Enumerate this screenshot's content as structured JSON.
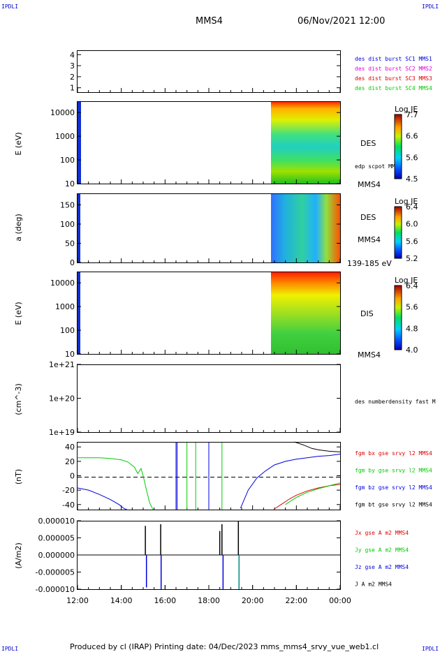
{
  "header": {
    "corner_label": "IPDLI",
    "spacecraft": "MMS4",
    "datetime": "06/Nov/2021 12:00"
  },
  "footer": {
    "text": "Produced by cl (IRAP)   Printing date: 04/Dec/2023   mms_mms4_srvy_vue_web1.cl"
  },
  "colors": {
    "blue": "#0000dd",
    "magenta": "#dd00dd",
    "red": "#dd0000",
    "green": "#00cc00",
    "black": "#000000"
  },
  "chart_data": [
    {
      "type": "line",
      "panel": "burst-indicator",
      "yticks": [
        "1",
        "2",
        "3",
        "4"
      ],
      "ylim": [
        0.6,
        4.4
      ],
      "legend": [
        {
          "name": "des dist burst SC1 MMS1",
          "color": "#0000dd"
        },
        {
          "name": "des dist burst SC2 MMS2",
          "color": "#dd00dd"
        },
        {
          "name": "des dist burst SC3 MMS3",
          "color": "#dd0000"
        },
        {
          "name": "des dist burst SC4 MMS4",
          "color": "#00cc00"
        }
      ]
    },
    {
      "type": "heatmap",
      "panel": "des-energy-spectrogram",
      "ylabel": "E (eV)",
      "yscale": "log",
      "yticks": [
        "10",
        "100",
        "1000",
        "10000"
      ],
      "ylim": [
        10,
        30000
      ],
      "label": "DES",
      "overlay_label": "edp scpot MMS4",
      "sc_label": "MMS4",
      "colorbar": {
        "title": "Log JE",
        "ticks": [
          "7.7",
          "6.6",
          "5.6",
          "4.5"
        ],
        "range": [
          4.5,
          7.7
        ]
      },
      "data_intervals": [
        [
          "12:00",
          "12:05"
        ],
        [
          "20:55",
          "24:00"
        ]
      ]
    },
    {
      "type": "heatmap",
      "panel": "des-pitch-angle",
      "ylabel": "a (deg)",
      "yticks": [
        "0",
        "50",
        "100",
        "150"
      ],
      "ylim": [
        0,
        180
      ],
      "label": "DES",
      "sc_label": "MMS4",
      "energy_range": "139-185 eV",
      "colorbar": {
        "title": "Log JE",
        "ticks": [
          "6.4",
          "6.0",
          "5.6",
          "5.2"
        ],
        "range": [
          5.2,
          6.4
        ]
      },
      "data_intervals": [
        [
          "12:00",
          "12:05"
        ],
        [
          "20:55",
          "24:00"
        ]
      ]
    },
    {
      "type": "heatmap",
      "panel": "dis-energy-spectrogram",
      "ylabel": "E (eV)",
      "yscale": "log",
      "yticks": [
        "10",
        "100",
        "1000",
        "10000"
      ],
      "ylim": [
        10,
        30000
      ],
      "label": "DIS",
      "sc_label": "MMS4",
      "colorbar": {
        "title": "Log JE",
        "ticks": [
          "6.4",
          "5.6",
          "4.8",
          "4.0"
        ],
        "range": [
          4.0,
          6.4
        ]
      },
      "data_intervals": [
        [
          "12:00",
          "12:05"
        ],
        [
          "20:55",
          "24:00"
        ]
      ]
    },
    {
      "type": "line",
      "panel": "density",
      "ylabel": "(cm^-3)",
      "yscale": "log",
      "yticks": [
        "1e+19",
        "1e+20",
        "1e+21"
      ],
      "ylim": [
        1e+19,
        1e+21
      ],
      "legend": [
        {
          "name": "des numberdensity fast M",
          "color": "#000000"
        }
      ]
    },
    {
      "type": "line",
      "panel": "magnetic-field",
      "ylabel": "(nT)",
      "yticks": [
        "-40",
        "-20",
        "0",
        "20",
        "40"
      ],
      "ylim": [
        -47,
        47
      ],
      "legend": [
        {
          "name": "fgm bx gse srvy l2 MMS4",
          "color": "#dd0000"
        },
        {
          "name": "fgm by gse srvy l2 MMS4",
          "color": "#00cc00"
        },
        {
          "name": "fgm bz gse srvy l2 MMS4",
          "color": "#0000dd"
        },
        {
          "name": "fgm bt gse srvy l2 MMS4",
          "color": "#000000"
        }
      ],
      "series": [
        {
          "name": "fgm by gse srvy l2 MMS4",
          "color": "#00cc00",
          "x": [
            12.0,
            12.5,
            13.0,
            13.5,
            14.0,
            14.3,
            14.6,
            14.75,
            14.9,
            15.0,
            15.15,
            15.3,
            15.45
          ],
          "y": [
            25,
            25,
            25,
            24,
            22,
            19,
            12,
            3,
            10,
            0,
            -20,
            -38,
            -47
          ]
        },
        {
          "name": "fgm bz gse srvy l2 MMS4",
          "color": "#0000dd",
          "x": [
            12.0,
            12.5,
            13.0,
            13.5,
            13.9,
            14.1,
            14.25
          ],
          "y": [
            -17,
            -20,
            -26,
            -33,
            -40,
            -45,
            -47
          ]
        },
        {
          "name": "fgm bz gse srvy l2 MMS4",
          "color": "#0000dd",
          "x": [
            19.45,
            19.8,
            20.2,
            20.6,
            21.0,
            21.5,
            22.0,
            22.5,
            23.0,
            23.5,
            24.0
          ],
          "y": [
            -45,
            -20,
            -3,
            7,
            15,
            20,
            23,
            25,
            27,
            28,
            30
          ]
        },
        {
          "name": "fgm bx gse srvy l2 MMS4",
          "color": "#dd0000",
          "x": [
            21.0,
            21.3,
            21.7,
            22.0,
            22.5,
            23.0,
            23.5,
            24.0
          ],
          "y": [
            -46,
            -40,
            -32,
            -27,
            -21,
            -17,
            -14,
            -12
          ]
        },
        {
          "name": "fgm by gse srvy l2 MMS4",
          "color": "#00cc00",
          "x": [
            21.5,
            22.0,
            22.5,
            23.0,
            23.5,
            24.0
          ],
          "y": [
            -40,
            -30,
            -23,
            -18,
            -14,
            -10
          ]
        },
        {
          "name": "fgm bt gse srvy l2 MMS4",
          "color": "#000000",
          "x": [
            21.9,
            22.3,
            22.7,
            23.0,
            23.5,
            24.0
          ],
          "y": [
            47,
            43,
            38,
            36,
            34,
            33
          ]
        }
      ]
    },
    {
      "type": "line",
      "panel": "current-density",
      "ylabel": "(A/m2)",
      "yticks": [
        "-0.000010",
        "-0.000005",
        "0.000000",
        "0.000005",
        "0.000010"
      ],
      "ylim": [
        -1e-05,
        1e-05
      ],
      "legend": [
        {
          "name": "Jx gse A m2 MMS4",
          "color": "#dd0000"
        },
        {
          "name": "Jy gse A m2 MMS4",
          "color": "#00cc00"
        },
        {
          "name": "Jz gse A m2 MMS4",
          "color": "#0000dd"
        },
        {
          "name": "J A m2 MMS4",
          "color": "#000000"
        }
      ],
      "xticks": [
        "12:00",
        "14:00",
        "16:00",
        "18:00",
        "20:00",
        "22:00",
        "00:00"
      ],
      "xlim": [
        12,
        24
      ]
    }
  ]
}
